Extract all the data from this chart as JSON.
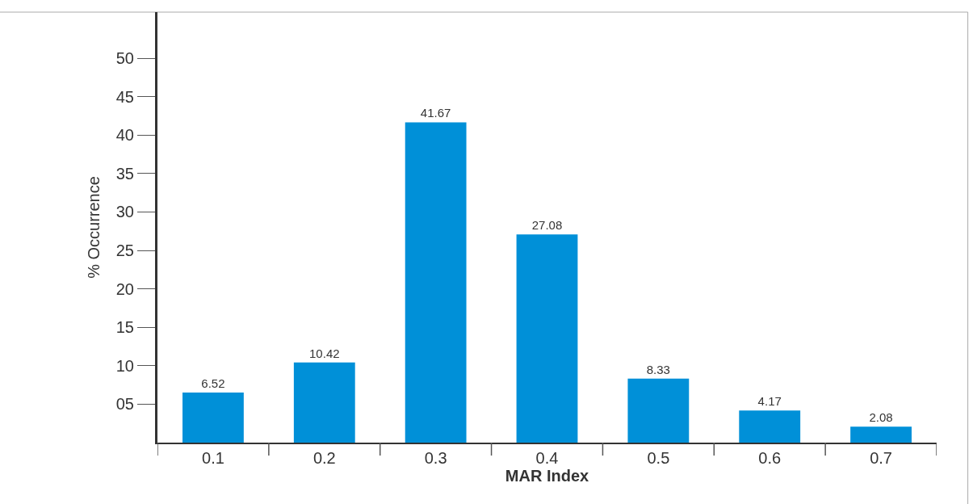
{
  "chart_data": {
    "type": "bar",
    "xlabel": "MAR Index",
    "ylabel": "% Occurrence",
    "categories": [
      "0.1",
      "0.2",
      "0.3",
      "0.4",
      "0.5",
      "0.6",
      "0.7"
    ],
    "values": [
      6.52,
      10.42,
      41.67,
      27.08,
      8.33,
      4.17,
      2.08
    ],
    "color": "#0090d8",
    "data_labels": true,
    "grid": false,
    "legend": false,
    "ylim": [
      0,
      56
    ],
    "yticks": [
      {
        "value": 5,
        "label": "05"
      },
      10,
      15,
      20,
      25,
      30,
      35,
      40,
      45,
      50
    ]
  }
}
